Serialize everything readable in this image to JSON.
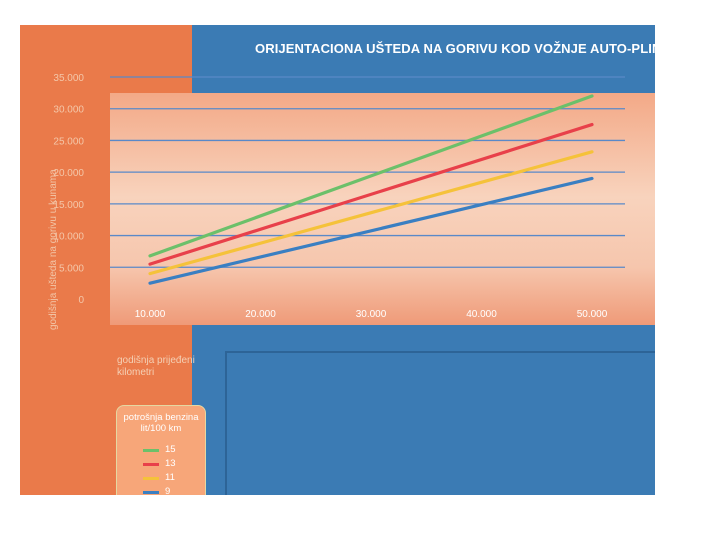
{
  "chart_data": {
    "type": "line",
    "title": "ORIJENTACIONA UŠTEDA NA GORIVU KOD VOŽNJE AUTO-PLINOM",
    "ylabel": "godišnja ušteda na gorivu u kunama",
    "xlabel": "godišnja prijeđeni kilometri",
    "x": [
      10000,
      50000
    ],
    "x_tick_labels": [
      "10.000",
      "20.000",
      "30.000",
      "40.000",
      "50.000"
    ],
    "y_tick_labels": [
      "0",
      "5.000",
      "10.000",
      "15.000",
      "20.000",
      "25.000",
      "30.000",
      "35.000"
    ],
    "ylim": [
      0,
      35000
    ],
    "xlim": [
      10000,
      50000
    ],
    "grid": true,
    "legend": {
      "title": "potrošnja benzina lit/100 km",
      "placement": "bottom-left"
    },
    "series": [
      {
        "name": "15",
        "color": "#6cc06a",
        "values": [
          6800,
          32000
        ]
      },
      {
        "name": "13",
        "color": "#e8404a",
        "values": [
          5500,
          27500
        ]
      },
      {
        "name": "11",
        "color": "#f5c23a",
        "values": [
          4000,
          23200
        ]
      },
      {
        "name": "9",
        "color": "#3a7fc2",
        "values": [
          2500,
          19000
        ]
      }
    ]
  },
  "colors": {
    "left_panel": "#ea7a4a",
    "right_panel": "#3b7bb4",
    "gridline": "#5a89c8"
  }
}
